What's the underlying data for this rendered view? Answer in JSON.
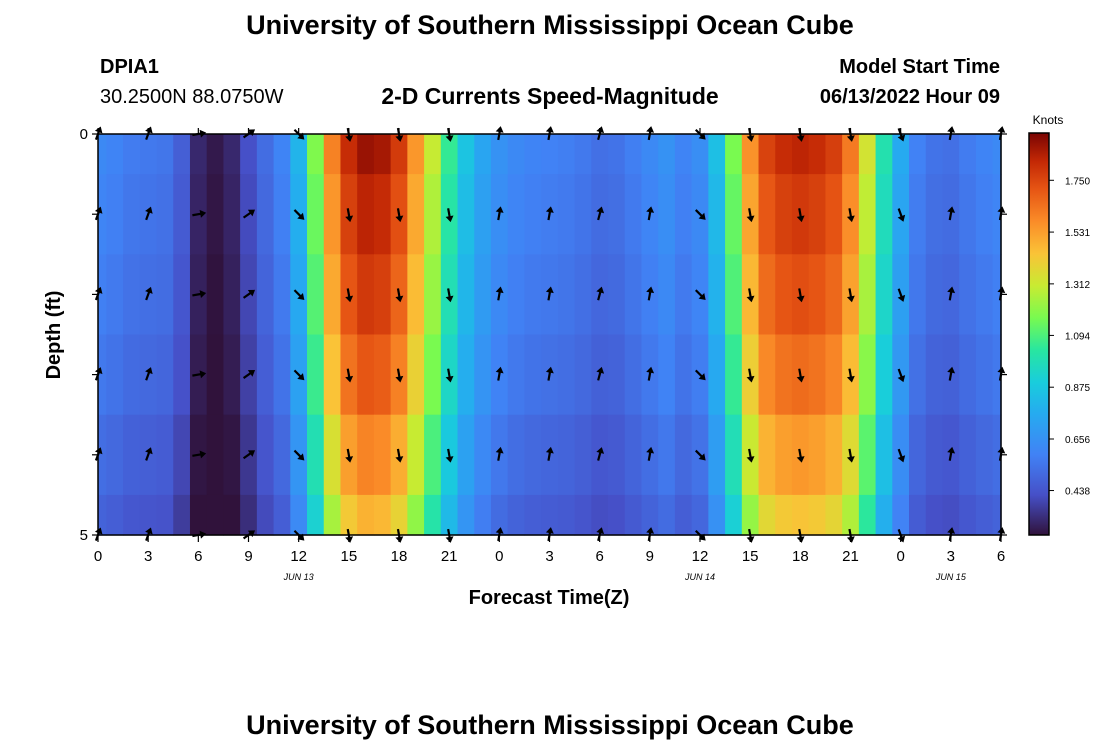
{
  "page": {
    "title": "University of Southern Mississippi Ocean Cube",
    "footer_title": "University of Southern Mississippi Ocean Cube"
  },
  "header": {
    "station": "DPIA1",
    "coords": "30.2500N  88.0750W",
    "subtitle": "2-D Currents Speed-Magnitude",
    "model_start_label": "Model Start Time",
    "model_start_value": "06/13/2022 Hour 09"
  },
  "chart_data": {
    "type": "heatmap",
    "title": "2-D Currents Speed-Magnitude",
    "xlabel": "Forecast Time(Z)",
    "ylabel": "Depth (ft)",
    "x_tick_labels": [
      "0",
      "3",
      "6",
      "9",
      "12",
      "15",
      "18",
      "21",
      "0",
      "3",
      "6",
      "9",
      "12",
      "15",
      "18",
      "21",
      "0",
      "3",
      "6"
    ],
    "date_labels": [
      {
        "label": "JUN 13",
        "tick_index": 4
      },
      {
        "label": "JUN 14",
        "tick_index": 12
      },
      {
        "label": "JUN 15",
        "tick_index": 17
      }
    ],
    "y_range": [
      0,
      5
    ],
    "y_tick_labels": [
      "0",
      "5"
    ],
    "x_hours": [
      0,
      1,
      2,
      3,
      4,
      5,
      6,
      7,
      8,
      9,
      10,
      11,
      12,
      13,
      14,
      15,
      16,
      17,
      18,
      19,
      20,
      21,
      22,
      23,
      24,
      25,
      26,
      27,
      28,
      29,
      30,
      31,
      32,
      33,
      34,
      35,
      36,
      37,
      38,
      39,
      40,
      41,
      42,
      43,
      44,
      45,
      46,
      47,
      48,
      49,
      50,
      51,
      52,
      53,
      54
    ],
    "depth_rows": [
      0,
      1,
      2,
      3,
      4,
      5
    ],
    "speed_profile_knots": [
      0.62,
      0.6,
      0.57,
      0.56,
      0.55,
      0.47,
      0.31,
      0.27,
      0.31,
      0.42,
      0.52,
      0.6,
      0.8,
      1.18,
      1.6,
      1.82,
      1.9,
      1.88,
      1.78,
      1.55,
      1.3,
      1.05,
      0.86,
      0.74,
      0.66,
      0.62,
      0.6,
      0.59,
      0.58,
      0.56,
      0.53,
      0.54,
      0.58,
      0.62,
      0.66,
      0.6,
      0.64,
      0.84,
      1.17,
      1.56,
      1.76,
      1.82,
      1.84,
      1.82,
      1.77,
      1.62,
      1.33,
      1.0,
      0.76,
      0.59,
      0.54,
      0.53,
      0.57,
      0.6,
      0.62
    ],
    "depth_factors": [
      1.0,
      0.97,
      0.94,
      0.9,
      0.84,
      0.78
    ],
    "vector_times": [
      0,
      3,
      6,
      9,
      12,
      15,
      18,
      21,
      24,
      27,
      30,
      33,
      36,
      39,
      42,
      45,
      48,
      51,
      54
    ],
    "vector_directions_deg": [
      20,
      20,
      80,
      55,
      135,
      170,
      170,
      170,
      10,
      10,
      15,
      10,
      135,
      170,
      170,
      170,
      160,
      10,
      10
    ],
    "colorbar": {
      "title": "Knots",
      "min": 0.25,
      "max": 1.95,
      "tick_values": [
        1.75,
        1.531,
        1.312,
        1.094,
        0.875,
        0.656,
        0.438
      ],
      "tick_labels": [
        "1.750",
        "1.531",
        "1.312",
        "1.094",
        "0.875",
        "0.656",
        "0.438"
      ]
    }
  }
}
